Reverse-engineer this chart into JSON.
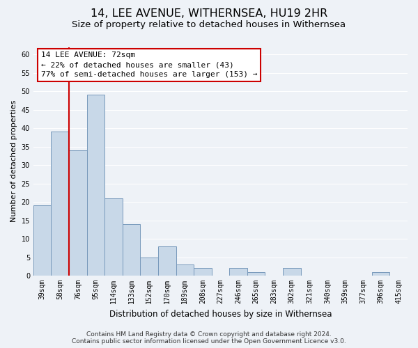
{
  "title": "14, LEE AVENUE, WITHERNSEA, HU19 2HR",
  "subtitle": "Size of property relative to detached houses in Withernsea",
  "xlabel": "Distribution of detached houses by size in Withernsea",
  "ylabel": "Number of detached properties",
  "bin_labels": [
    "39sqm",
    "58sqm",
    "76sqm",
    "95sqm",
    "114sqm",
    "133sqm",
    "152sqm",
    "170sqm",
    "189sqm",
    "208sqm",
    "227sqm",
    "246sqm",
    "265sqm",
    "283sqm",
    "302sqm",
    "321sqm",
    "340sqm",
    "359sqm",
    "377sqm",
    "396sqm",
    "415sqm"
  ],
  "bar_values": [
    19,
    39,
    34,
    49,
    21,
    14,
    5,
    8,
    3,
    2,
    0,
    2,
    1,
    0,
    2,
    0,
    0,
    0,
    0,
    1,
    0
  ],
  "bar_color": "#c8d8e8",
  "bar_edge_color": "#7799bb",
  "property_line_color": "#cc0000",
  "property_line_x": 1.5,
  "ann_line1": "14 LEE AVENUE: 72sqm",
  "ann_line2": "← 22% of detached houses are smaller (43)",
  "ann_line3": "77% of semi-detached houses are larger (153) →",
  "ylim": [
    0,
    62
  ],
  "yticks": [
    0,
    5,
    10,
    15,
    20,
    25,
    30,
    35,
    40,
    45,
    50,
    55,
    60
  ],
  "footer_line1": "Contains HM Land Registry data © Crown copyright and database right 2024.",
  "footer_line2": "Contains public sector information licensed under the Open Government Licence v3.0.",
  "background_color": "#eef2f7",
  "grid_color": "#ffffff",
  "title_fontsize": 11.5,
  "subtitle_fontsize": 9.5,
  "ylabel_fontsize": 8,
  "xlabel_fontsize": 8.5,
  "tick_fontsize": 7,
  "annotation_fontsize": 8,
  "footer_fontsize": 6.5
}
